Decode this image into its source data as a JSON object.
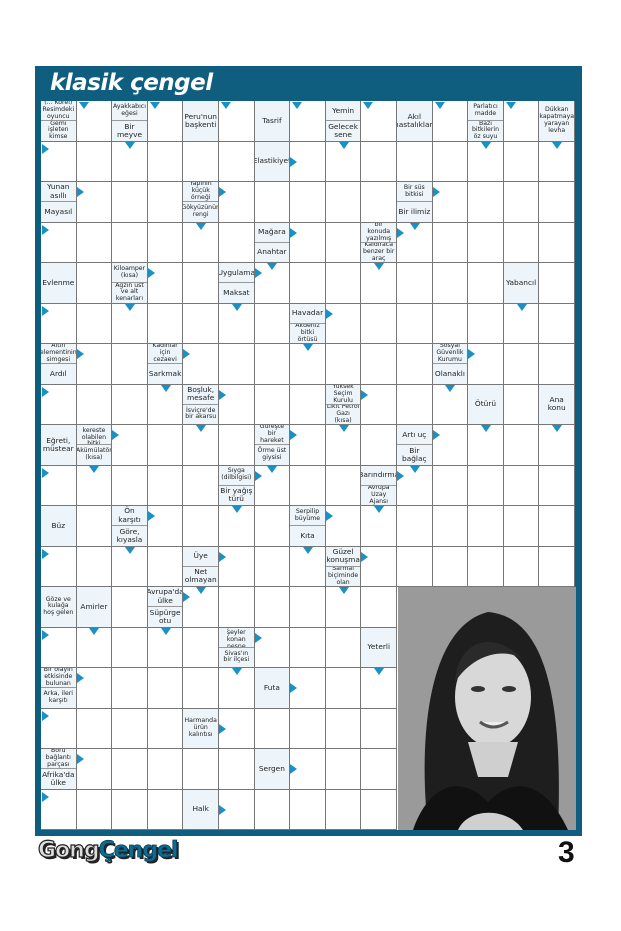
{
  "header": {
    "title": "klasik çengel"
  },
  "footer": {
    "logo_part1": "Gong",
    "logo_part2": "Çengel",
    "page_number": "3"
  },
  "colors": {
    "frame": "#0f5e80",
    "arrow": "#1a90c4",
    "clue_bg": "#eef5fa"
  },
  "photo": {
    "description_icon": "portrait-photo"
  },
  "grid": {
    "columns": 15,
    "rows": 18,
    "clues": [
      {
        "row": 0,
        "col": 0,
        "top": "(... Korel) Resimdeki oyuncu",
        "top_arrow": "right-down",
        "bottom": "Gemi işleten kimse",
        "bottom_arrow": "down-right"
      },
      {
        "row": 0,
        "col": 2,
        "top": "Ayakkabıcı eğesi",
        "top_arrow": "right-down",
        "bottom": "Bir meyve",
        "bottom_arrow": "down"
      },
      {
        "row": 0,
        "col": 4,
        "top": "Peru'nun başkenti",
        "top_arrow": "right-down"
      },
      {
        "row": 0,
        "col": 6,
        "top": "Tasrif",
        "top_arrow": "right-down"
      },
      {
        "row": 0,
        "col": 8,
        "top": "Yemin",
        "top_arrow": "right-down",
        "bottom": "Gelecek sene",
        "bottom_arrow": "down"
      },
      {
        "row": 0,
        "col": 10,
        "top": "Akıl hastalıkları",
        "top_arrow": "right-down"
      },
      {
        "row": 0,
        "col": 12,
        "top": "Parlatıcı madde",
        "top_arrow": "right-down",
        "bottom": "Bazı bitkilerin öz suyu",
        "bottom_arrow": "down"
      },
      {
        "row": 0,
        "col": 14,
        "top": "Dükkan kapatmaya yarayan levha",
        "top_arrow": "down"
      },
      {
        "row": 1,
        "col": 6,
        "top": "Elastikiyet",
        "top_arrow": "right"
      },
      {
        "row": 2,
        "col": 0,
        "top": "Yunan asıllı",
        "top_arrow": "right",
        "bottom": "Mayasıl",
        "bottom_arrow": "down-right"
      },
      {
        "row": 2,
        "col": 4,
        "top": "Yapının küçük örneği",
        "top_arrow": "right",
        "bottom": "Gökyüzünün rengi",
        "bottom_arrow": "down"
      },
      {
        "row": 2,
        "col": 10,
        "top": "Bir süs bitkisi",
        "top_arrow": "right",
        "bottom": "Bir ilimiz",
        "bottom_arrow": "down"
      },
      {
        "row": 3,
        "col": 6,
        "top": "Mağara",
        "top_arrow": "right",
        "bottom": "Anahtar",
        "bottom_arrow": "down"
      },
      {
        "row": 3,
        "col": 9,
        "top": "Herhangi bir konuda yazılmış eser",
        "top_arrow": "right",
        "bottom": "Kaldıraca benzer bir araç",
        "bottom_arrow": "down"
      },
      {
        "row": 4,
        "col": 0,
        "top": "Evlenme",
        "top_arrow": "down-right"
      },
      {
        "row": 4,
        "col": 2,
        "top": "Kiloamper (kısa)",
        "top_arrow": "right",
        "bottom": "Ağzın üst ve alt kenarları",
        "bottom_arrow": "down"
      },
      {
        "row": 4,
        "col": 5,
        "top": "Uygulama",
        "top_arrow": "right",
        "bottom": "Maksat",
        "bottom_arrow": "down"
      },
      {
        "row": 4,
        "col": 13,
        "top": "Yabancıl",
        "top_arrow": "down"
      },
      {
        "row": 5,
        "col": 7,
        "top": "Havadar",
        "top_arrow": "right",
        "bottom": "Akdeniz bitki örtüsü",
        "bottom_arrow": "down"
      },
      {
        "row": 6,
        "col": 0,
        "top": "Altın elementinin simgesi",
        "top_arrow": "right",
        "bottom": "Ardıl",
        "bottom_arrow": "down-right"
      },
      {
        "row": 6,
        "col": 3,
        "top": "Kadınlar için cezaevi",
        "top_arrow": "right",
        "bottom": "Sarkmak",
        "bottom_arrow": "down"
      },
      {
        "row": 6,
        "col": 11,
        "top": "Sosyal Güvenlik Kurumu",
        "top_arrow": "right",
        "bottom": "Olanaklı",
        "bottom_arrow": "down"
      },
      {
        "row": 7,
        "col": 4,
        "top": "Boşluk, mesafe",
        "top_arrow": "right",
        "bottom": "İsviçre'de bir akarsu",
        "bottom_arrow": "down"
      },
      {
        "row": 7,
        "col": 8,
        "top": "Yüksek Seçim Kurulu",
        "top_arrow": "right",
        "bottom": "Likit Petrol Gazı (kısa)",
        "bottom_arrow": "down"
      },
      {
        "row": 7,
        "col": 12,
        "top": "Ötürü",
        "top_arrow": "down"
      },
      {
        "row": 7,
        "col": 14,
        "top": "Ana konu",
        "top_arrow": "down"
      },
      {
        "row": 8,
        "col": 0,
        "top": "Eğreti, müstear",
        "top_arrow": "down-right"
      },
      {
        "row": 8,
        "col": 1,
        "top": "Gövdesi kereste olabilen bitki",
        "top_arrow": "right",
        "bottom": "Akümülatör (kısa)",
        "bottom_arrow": "down"
      },
      {
        "row": 8,
        "col": 6,
        "top": "Güreşte bir hareket",
        "top_arrow": "right",
        "bottom": "Örme üst giysisi",
        "bottom_arrow": "down"
      },
      {
        "row": 8,
        "col": 10,
        "top": "Artı uç",
        "top_arrow": "right",
        "bottom": "Bir bağlaç",
        "bottom_arrow": "down"
      },
      {
        "row": 9,
        "col": 5,
        "top": "Sıyga (dilbilgisi)",
        "top_arrow": "right",
        "bottom": "Bir yağış türü",
        "bottom_arrow": "down"
      },
      {
        "row": 9,
        "col": 9,
        "top": "Barındırma",
        "top_arrow": "right",
        "bottom": "Avrupa Uzay Ajansı",
        "bottom_arrow": "down"
      },
      {
        "row": 10,
        "col": 0,
        "top": "Büz",
        "top_arrow": "down-right"
      },
      {
        "row": 10,
        "col": 2,
        "top": "Ön karşıtı",
        "top_arrow": "right",
        "bottom": "Göre, kıyasla",
        "bottom_arrow": "down"
      },
      {
        "row": 10,
        "col": 7,
        "top": "Serpilip büyüme",
        "top_arrow": "right",
        "bottom": "Kıta",
        "bottom_arrow": "down"
      },
      {
        "row": 11,
        "col": 4,
        "top": "Üye",
        "top_arrow": "right",
        "bottom": "Net olmayan",
        "bottom_arrow": "down"
      },
      {
        "row": 11,
        "col": 8,
        "top": "Güzel konuşma",
        "top_arrow": "right",
        "bottom": "Sarmal biçiminde olan",
        "bottom_arrow": "down"
      },
      {
        "row": 12,
        "col": 0,
        "top": "Göze ve kulağa hoş gelen",
        "top_arrow": "down-right"
      },
      {
        "row": 12,
        "col": 1,
        "top": "Amirler",
        "top_arrow": "down"
      },
      {
        "row": 12,
        "col": 3,
        "top": "Avrupa'da ülke",
        "top_arrow": "right",
        "bottom": "Süpürge otu",
        "bottom_arrow": "down"
      },
      {
        "row": 13,
        "col": 5,
        "top": "İçine bir şeyler konan nesne",
        "top_arrow": "right",
        "bottom": "Sivas'ın bir ilçesi",
        "bottom_arrow": "down"
      },
      {
        "row": 13,
        "col": 9,
        "top": "Yeterli",
        "top_arrow": "down"
      },
      {
        "row": 14,
        "col": 0,
        "top": "Bir olayın etkisinde bulunan",
        "top_arrow": "right",
        "bottom": "Arka, ileri karşıtı",
        "bottom_arrow": "down-right"
      },
      {
        "row": 14,
        "col": 6,
        "top": "Futa",
        "top_arrow": "right"
      },
      {
        "row": 15,
        "col": 4,
        "top": "Harmanda ürün kalıntısı",
        "top_arrow": "right"
      },
      {
        "row": 16,
        "col": 0,
        "top": "Boru bağlantı parçası",
        "top_arrow": "right",
        "bottom": "Afrika'da ülke",
        "bottom_arrow": "down-right"
      },
      {
        "row": 16,
        "col": 6,
        "top": "Sergen",
        "top_arrow": "right"
      },
      {
        "row": 17,
        "col": 4,
        "top": "Halk",
        "top_arrow": "right"
      }
    ]
  }
}
